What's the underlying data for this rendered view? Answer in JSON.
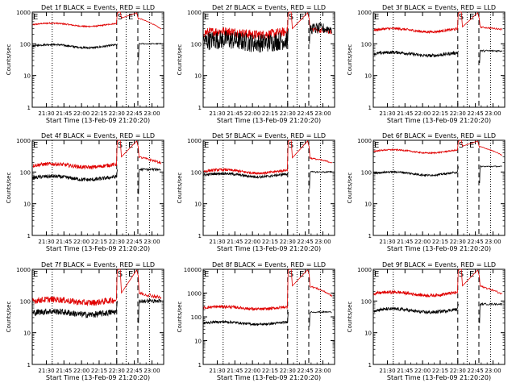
{
  "figure": {
    "x_tick_labels": [
      "21:30",
      "21:45",
      "22:00",
      "22:15",
      "22:30",
      "22:45",
      "23:00"
    ],
    "x_tick_minutes": [
      1290,
      1305,
      1320,
      1335,
      1350,
      1365,
      1380
    ],
    "x_range_minutes": [
      1278,
      1390
    ],
    "y_tick_labels": [
      "1",
      "10",
      "100",
      "1000"
    ],
    "y_tick_labels_large": [
      "1",
      "10",
      "100",
      "1000",
      "10000"
    ],
    "dotted_line_minutes": [
      1295,
      1358,
      1378
    ],
    "dashed_line_minutes": [
      1350,
      1368
    ],
    "marker_labels": {
      "e": "E",
      "s": "S"
    },
    "colors": {
      "events": "#000000",
      "lld": "#e00000"
    }
  },
  "chart_data": [
    {
      "type": "line",
      "title": "Det 1f BLACK = Events, RED = LLD",
      "xlabel": "Start Time (13-Feb-09 21:20:20)",
      "ylabel": "Counts/sec",
      "yscale": "log",
      "ylim": [
        1,
        1000
      ],
      "grid": false,
      "series": [
        {
          "name": "Events",
          "color": "#000000",
          "baseline": 85,
          "noise": 0.03,
          "saa_level": 100,
          "saa_dip": 30
        },
        {
          "name": "LLD",
          "color": "#e00000",
          "baseline": 400,
          "noise": 0.02,
          "saa_peak": 1000,
          "saa_level": 650,
          "saa_decay": 250
        }
      ]
    },
    {
      "type": "line",
      "title": "Det 2f BLACK = Events, RED = LLD",
      "xlabel": "Start Time (13-Feb-09 21:20:20)",
      "ylabel": "Counts/sec",
      "yscale": "log",
      "ylim": [
        1,
        1000
      ],
      "grid": false,
      "series": [
        {
          "name": "Events",
          "color": "#000000",
          "baseline": 120,
          "noise": 0.3,
          "saa_level": 300,
          "saa_dip": 100
        },
        {
          "name": "LLD",
          "color": "#e00000",
          "baseline": 220,
          "noise": 0.15,
          "saa_peak": 1000,
          "saa_level": 300,
          "saa_decay": 230
        }
      ]
    },
    {
      "type": "line",
      "title": "Det 3f BLACK = Events, RED = LLD",
      "xlabel": "Start Time (13-Feb-09 21:20:20)",
      "ylabel": "Counts/sec",
      "yscale": "log",
      "ylim": [
        1,
        1000
      ],
      "grid": false,
      "series": [
        {
          "name": "Events",
          "color": "#000000",
          "baseline": 48,
          "noise": 0.05,
          "saa_level": 60,
          "saa_dip": 25
        },
        {
          "name": "LLD",
          "color": "#e00000",
          "baseline": 270,
          "noise": 0.04,
          "saa_peak": 1000,
          "saa_level": 340,
          "saa_decay": 280
        }
      ]
    },
    {
      "type": "line",
      "title": "Det 4f BLACK = Events, RED = LLD",
      "xlabel": "Start Time (13-Feb-09 21:20:20)",
      "ylabel": "Counts/sec",
      "yscale": "log",
      "ylim": [
        1,
        1000
      ],
      "grid": false,
      "series": [
        {
          "name": "Events",
          "color": "#000000",
          "baseline": 65,
          "noise": 0.06,
          "saa_level": 120,
          "saa_dip": 20
        },
        {
          "name": "LLD",
          "color": "#e00000",
          "baseline": 160,
          "noise": 0.06,
          "saa_peak": 1000,
          "saa_level": 300,
          "saa_decay": 180
        }
      ]
    },
    {
      "type": "line",
      "title": "Det 5f BLACK = Events, RED = LLD",
      "xlabel": "Start Time (13-Feb-09 21:20:20)",
      "ylabel": "Counts/sec",
      "yscale": "log",
      "ylim": [
        1,
        1000
      ],
      "grid": false,
      "series": [
        {
          "name": "Events",
          "color": "#000000",
          "baseline": 80,
          "noise": 0.04,
          "saa_level": 100,
          "saa_dip": 30
        },
        {
          "name": "LLD",
          "color": "#e00000",
          "baseline": 105,
          "noise": 0.04,
          "saa_peak": 1000,
          "saa_level": 280,
          "saa_decay": 190
        }
      ]
    },
    {
      "type": "line",
      "title": "Det 6f BLACK = Events, RED = LLD",
      "xlabel": "Start Time (13-Feb-09 21:20:20)",
      "ylabel": "Counts/sec",
      "yscale": "log",
      "ylim": [
        1,
        1000
      ],
      "grid": false,
      "series": [
        {
          "name": "Events",
          "color": "#000000",
          "baseline": 90,
          "noise": 0.03,
          "saa_level": 150,
          "saa_dip": 45
        },
        {
          "name": "LLD",
          "color": "#e00000",
          "baseline": 450,
          "noise": 0.02,
          "saa_peak": 1000,
          "saa_level": 650,
          "saa_decay": 300
        }
      ]
    },
    {
      "type": "line",
      "title": "Det 7f BLACK = Events, RED = LLD",
      "xlabel": "Start Time (13-Feb-09 21:20:20)",
      "ylabel": "Counts/sec",
      "yscale": "log",
      "ylim": [
        1,
        1000
      ],
      "grid": false,
      "series": [
        {
          "name": "Events",
          "color": "#000000",
          "baseline": 42,
          "noise": 0.1,
          "saa_level": 100,
          "saa_dip": 20
        },
        {
          "name": "LLD",
          "color": "#e00000",
          "baseline": 100,
          "noise": 0.1,
          "saa_peak": 1000,
          "saa_level": 180,
          "saa_decay": 120
        }
      ]
    },
    {
      "type": "line",
      "title": "Det 8f BLACK = Events, RED = LLD",
      "xlabel": "Start Time (13-Feb-09 21:20:20)",
      "ylabel": "Counts/sec",
      "yscale": "log",
      "ylim": [
        1,
        10000
      ],
      "grid": false,
      "series": [
        {
          "name": "Events",
          "color": "#000000",
          "baseline": 55,
          "noise": 0.05,
          "saa_level": 160,
          "saa_dip": 40
        },
        {
          "name": "LLD",
          "color": "#e00000",
          "baseline": 240,
          "noise": 0.06,
          "saa_peak": 10000,
          "saa_level": 2000,
          "saa_decay": 600
        }
      ]
    },
    {
      "type": "line",
      "title": "Det 9f BLACK = Events, RED = LLD",
      "xlabel": "Start Time (13-Feb-09 21:20:20)",
      "ylabel": "Counts/sec",
      "yscale": "log",
      "ylim": [
        1,
        1000
      ],
      "grid": false,
      "series": [
        {
          "name": "Events",
          "color": "#000000",
          "baseline": 50,
          "noise": 0.05,
          "saa_level": 80,
          "saa_dip": 20
        },
        {
          "name": "LLD",
          "color": "#e00000",
          "baseline": 170,
          "noise": 0.05,
          "saa_peak": 1000,
          "saa_level": 300,
          "saa_decay": 150
        }
      ]
    }
  ]
}
